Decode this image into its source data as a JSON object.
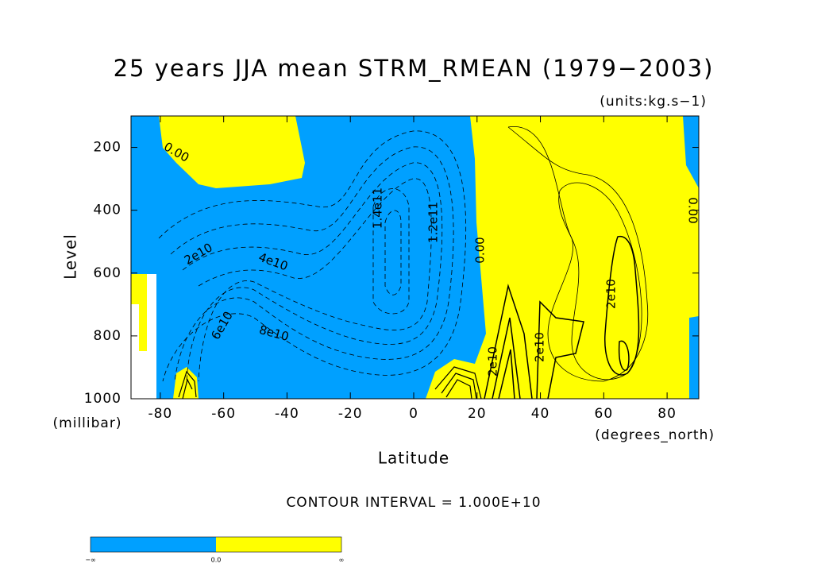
{
  "chart_data": {
    "type": "contour",
    "title": "25 years JJA mean STRM_RMEAN (1979−2003)",
    "subtitle": "(units:kg.s−1)",
    "x_label": "Latitude",
    "x_unit": "(degrees_north)",
    "y_label": "Level",
    "y_unit": "(millibar)",
    "xlim": [
      -90,
      90
    ],
    "xticks": [
      -80,
      -60,
      -40,
      -20,
      0,
      20,
      40,
      60,
      80
    ],
    "ylim": [
      1000,
      100
    ],
    "yticks": [
      200,
      400,
      600,
      800,
      1000
    ],
    "colors": [
      "#00a0ff",
      "#ffff00"
    ],
    "contour_labels": [
      "0.00",
      "2e10",
      "4e10",
      "6e10",
      "8e10",
      "1.4e11",
      "1.2e11",
      "0.00",
      "2e10",
      "2e10",
      "2e10",
      "0.00"
    ],
    "note": "CONTOUR INTERVAL = 1.000E+10",
    "colorbar_labels": [
      "−∞",
      "0.0",
      "∞"
    ]
  }
}
